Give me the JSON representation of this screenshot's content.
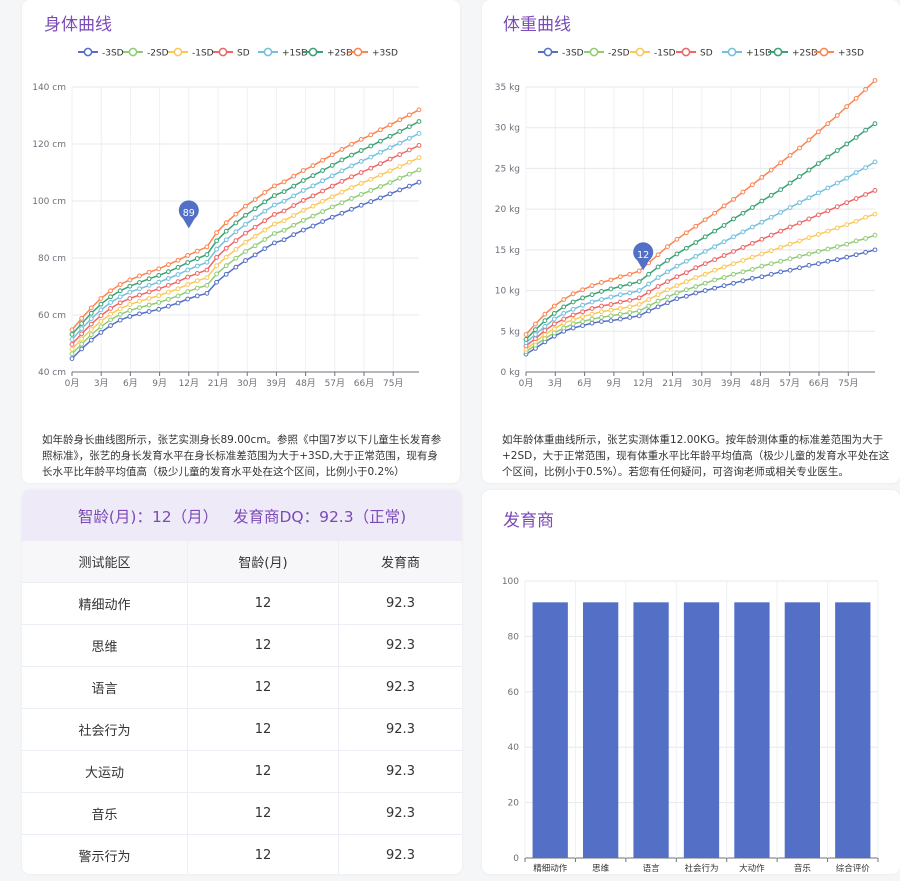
{
  "height_card": {
    "title": "身体曲线",
    "description": "如年龄身长曲线图所示，张艺实测身长89.00cm。参照《中国7岁以下儿童生长发育参照标准》，张艺的身长发育水平在身长标准差范围为大于+3SD,大于正常范围，现有身长水平比年龄平均值高（极少儿童的发育水平处在这个区间，比例小于0.2%）"
  },
  "weight_card": {
    "title": "体重曲线",
    "description": "如年龄体重曲线所示，张艺实测体重12.00KG。按年龄测体重的标准差范围为大于+2SD，大于正常范围，现有体重水平比年龄平均值高（极少儿童的发育水平处在这个区间，比例小于0.5%）。若您有任何疑问，可咨询老师或相关专业医生。"
  },
  "dq_card": {
    "header": "智龄(月)：12（月）   发育商DQ：92.3（正常)",
    "columns": [
      "测试能区",
      "智龄(月)",
      "发育商"
    ],
    "rows": [
      [
        "精细动作",
        "12",
        "92.3"
      ],
      [
        "思维",
        "12",
        "92.3"
      ],
      [
        "语言",
        "12",
        "92.3"
      ],
      [
        "社会行为",
        "12",
        "92.3"
      ],
      [
        "大运动",
        "12",
        "92.3"
      ],
      [
        "音乐",
        "12",
        "92.3"
      ],
      [
        "警示行为",
        "12",
        "92.3"
      ]
    ]
  },
  "bar_card": {
    "title": "发育商"
  },
  "chart_data": [
    {
      "type": "line",
      "title": "身体曲线",
      "x_tick_labels": [
        "0月",
        "3月",
        "6月",
        "9月",
        "12月",
        "21月",
        "30月",
        "39月",
        "48月",
        "57月",
        "66月",
        "75月"
      ],
      "y_ticks": [
        40,
        60,
        80,
        100,
        120,
        140
      ],
      "y_tick_labels": [
        "40 cm",
        "60 cm",
        "80 cm",
        "100 cm",
        "120 cm",
        "140 cm"
      ],
      "ylim": [
        40,
        140
      ],
      "legend_position": "top",
      "series": [
        {
          "name": "-3SD",
          "color": "#5470c6",
          "values": [
            44.7,
            48.1,
            51.2,
            53.9,
            56.3,
            58.2,
            59.5,
            60.4,
            61.2,
            62.0,
            63.1,
            64.2,
            65.6,
            66.7,
            67.6,
            71.5,
            74.3,
            76.8,
            79.1,
            81.1,
            83.3,
            85.3,
            86.4,
            88.2,
            89.8,
            91.2,
            92.8,
            94.3,
            95.7,
            97.1,
            98.5,
            99.8,
            101.1,
            102.5,
            103.9,
            105.2,
            106.6
          ]
        },
        {
          "name": "-2SD",
          "color": "#91cc75",
          "values": [
            46.4,
            49.8,
            53.1,
            55.9,
            58.3,
            60.2,
            61.6,
            62.6,
            63.5,
            64.4,
            65.5,
            66.7,
            68.2,
            69.4,
            70.4,
            74.4,
            77.3,
            79.9,
            82.3,
            84.3,
            86.5,
            88.6,
            89.7,
            91.5,
            93.2,
            94.7,
            96.3,
            97.9,
            99.4,
            100.9,
            102.3,
            103.7,
            105.1,
            106.5,
            108.0,
            109.4,
            110.9
          ]
        },
        {
          "name": "-1SD",
          "color": "#fac858",
          "values": [
            48.0,
            51.6,
            54.9,
            57.8,
            60.3,
            62.2,
            63.7,
            64.8,
            65.8,
            66.8,
            68.0,
            69.2,
            70.7,
            72.0,
            73.1,
            77.3,
            80.3,
            83.0,
            85.5,
            87.6,
            89.8,
            91.9,
            93.1,
            94.9,
            96.7,
            98.2,
            99.9,
            101.5,
            103.1,
            104.7,
            106.2,
            107.6,
            109.1,
            110.6,
            112.1,
            113.6,
            115.2
          ]
        },
        {
          "name": "SD",
          "color": "#ee6666",
          "values": [
            49.7,
            53.4,
            56.8,
            59.8,
            62.3,
            64.3,
            65.8,
            67.0,
            68.1,
            69.2,
            70.4,
            71.7,
            73.3,
            74.6,
            75.8,
            80.2,
            83.4,
            86.1,
            88.7,
            90.8,
            93.1,
            95.3,
            96.5,
            98.4,
            100.2,
            101.8,
            103.5,
            105.2,
            106.9,
            108.5,
            110.0,
            111.5,
            113.1,
            114.7,
            116.3,
            117.9,
            119.5
          ]
        },
        {
          "name": "+1SD",
          "color": "#73c0de",
          "values": [
            51.4,
            55.2,
            58.7,
            61.8,
            64.4,
            66.4,
            68.0,
            69.2,
            70.4,
            71.5,
            72.8,
            74.2,
            75.8,
            77.2,
            78.5,
            83.1,
            86.4,
            89.2,
            91.8,
            94.1,
            96.4,
            98.6,
            99.9,
            101.8,
            103.7,
            105.3,
            107.1,
            108.8,
            110.6,
            112.3,
            113.9,
            115.4,
            117.1,
            118.7,
            120.3,
            122.0,
            123.7
          ]
        },
        {
          "name": "+2SD",
          "color": "#3ba272",
          "values": [
            53.2,
            57.0,
            60.6,
            63.8,
            66.4,
            68.5,
            70.1,
            71.4,
            72.7,
            73.9,
            75.2,
            76.7,
            78.4,
            79.8,
            81.2,
            86.0,
            89.4,
            92.3,
            95.0,
            97.3,
            99.7,
            101.9,
            103.3,
            105.2,
            107.2,
            108.9,
            110.7,
            112.5,
            114.4,
            116.1,
            117.7,
            119.3,
            121.0,
            122.7,
            124.4,
            126.1,
            127.9
          ]
        },
        {
          "name": "+3SD",
          "color": "#fc8452",
          "values": [
            54.8,
            58.8,
            62.5,
            65.8,
            68.5,
            70.7,
            72.3,
            73.7,
            75.0,
            76.2,
            77.7,
            79.2,
            80.9,
            82.4,
            83.9,
            88.9,
            92.4,
            95.4,
            98.2,
            100.5,
            103.0,
            105.3,
            106.7,
            108.7,
            110.7,
            112.4,
            114.3,
            116.2,
            118.1,
            119.9,
            121.6,
            123.2,
            125.0,
            126.7,
            128.5,
            130.2,
            132.0
          ]
        }
      ],
      "marker": {
        "label": "89",
        "value": 89,
        "x_label": "12月"
      }
    },
    {
      "type": "line",
      "title": "体重曲线",
      "x_tick_labels": [
        "0月",
        "3月",
        "6月",
        "9月",
        "12月",
        "21月",
        "30月",
        "39月",
        "48月",
        "57月",
        "66月",
        "75月"
      ],
      "y_ticks": [
        0,
        5,
        10,
        15,
        20,
        25,
        30,
        35
      ],
      "y_tick_labels": [
        "0 kg",
        "5 kg",
        "10 kg",
        "15 kg",
        "20 kg",
        "25 kg",
        "30 kg",
        "35 kg"
      ],
      "ylim": [
        0,
        35
      ],
      "legend_position": "top",
      "series": [
        {
          "name": "-3SD",
          "color": "#5470c6",
          "values": [
            2.2,
            2.9,
            3.7,
            4.4,
            5.0,
            5.4,
            5.7,
            6.0,
            6.2,
            6.3,
            6.5,
            6.7,
            6.9,
            7.5,
            8.0,
            8.5,
            9.0,
            9.3,
            9.7,
            10.0,
            10.3,
            10.6,
            10.9,
            11.2,
            11.5,
            11.7,
            12.0,
            12.3,
            12.5,
            12.8,
            13.1,
            13.3,
            13.6,
            13.8,
            14.1,
            14.4,
            14.7,
            15.0
          ]
        },
        {
          "name": "-2SD",
          "color": "#91cc75",
          "values": [
            2.5,
            3.3,
            4.1,
            4.8,
            5.4,
            5.9,
            6.2,
            6.5,
            6.7,
            6.9,
            7.1,
            7.3,
            7.5,
            8.1,
            8.7,
            9.2,
            9.7,
            10.1,
            10.5,
            10.9,
            11.3,
            11.6,
            12.0,
            12.3,
            12.6,
            13.0,
            13.3,
            13.6,
            13.9,
            14.2,
            14.5,
            14.8,
            15.1,
            15.4,
            15.7,
            16.1,
            16.4,
            16.8
          ]
        },
        {
          "name": "-1SD",
          "color": "#fac858",
          "values": [
            2.8,
            3.7,
            4.6,
            5.3,
            6.0,
            6.4,
            6.8,
            7.1,
            7.4,
            7.6,
            7.8,
            8.0,
            8.3,
            8.9,
            9.5,
            10.1,
            10.6,
            11.1,
            11.6,
            12.0,
            12.5,
            12.9,
            13.3,
            13.7,
            14.1,
            14.5,
            14.9,
            15.3,
            15.7,
            16.1,
            16.5,
            16.9,
            17.3,
            17.7,
            18.1,
            18.5,
            19.0,
            19.4
          ]
        },
        {
          "name": "SD",
          "color": "#ee6666",
          "values": [
            3.2,
            4.1,
            5.1,
            5.9,
            6.5,
            7.0,
            7.4,
            7.8,
            8.1,
            8.3,
            8.6,
            8.8,
            9.1,
            9.8,
            10.5,
            11.1,
            11.7,
            12.2,
            12.8,
            13.3,
            13.8,
            14.3,
            14.8,
            15.3,
            15.8,
            16.3,
            16.8,
            17.3,
            17.8,
            18.3,
            18.8,
            19.3,
            19.8,
            20.3,
            20.8,
            21.3,
            21.8,
            22.3
          ]
        },
        {
          "name": "+1SD",
          "color": "#73c0de",
          "values": [
            3.6,
            4.6,
            5.6,
            6.5,
            7.2,
            7.7,
            8.2,
            8.6,
            8.9,
            9.2,
            9.5,
            9.7,
            10.0,
            10.8,
            11.6,
            12.3,
            13.0,
            13.6,
            14.2,
            14.8,
            15.4,
            16.0,
            16.6,
            17.2,
            17.8,
            18.4,
            19.0,
            19.6,
            20.2,
            20.8,
            21.4,
            22.0,
            22.6,
            23.2,
            23.8,
            24.5,
            25.1,
            25.8
          ]
        },
        {
          "name": "+2SD",
          "color": "#3ba272",
          "values": [
            4.0,
            5.2,
            6.3,
            7.2,
            8.0,
            8.6,
            9.1,
            9.5,
            9.9,
            10.2,
            10.5,
            10.8,
            11.1,
            12.0,
            12.9,
            13.7,
            14.5,
            15.2,
            15.9,
            16.6,
            17.3,
            18.0,
            18.8,
            19.5,
            20.2,
            21.0,
            21.7,
            22.4,
            23.2,
            24.0,
            24.8,
            25.6,
            26.4,
            27.2,
            28.0,
            28.8,
            29.7,
            30.5
          ]
        },
        {
          "name": "+3SD",
          "color": "#fc8452",
          "values": [
            4.6,
            5.9,
            7.1,
            8.1,
            8.9,
            9.6,
            10.1,
            10.6,
            11.0,
            11.3,
            11.7,
            12.0,
            12.4,
            13.4,
            14.4,
            15.4,
            16.3,
            17.1,
            17.9,
            18.7,
            19.5,
            20.4,
            21.2,
            22.1,
            23.0,
            23.9,
            24.8,
            25.7,
            26.6,
            27.5,
            28.5,
            29.5,
            30.5,
            31.5,
            32.6,
            33.6,
            34.7,
            35.8
          ]
        }
      ],
      "marker": {
        "label": "12",
        "value": 12,
        "x_label": "12月"
      }
    },
    {
      "type": "bar",
      "title": "发育商",
      "categories": [
        "精细动作",
        "思维",
        "语言",
        "社会行为",
        "大动作",
        "音乐",
        "综合评价"
      ],
      "values": [
        92.3,
        92.3,
        92.3,
        92.3,
        92.3,
        92.3,
        92.3
      ],
      "y_ticks": [
        0,
        20,
        40,
        60,
        80,
        100
      ],
      "ylim": [
        0,
        100
      ],
      "color": "#5470c6"
    }
  ]
}
